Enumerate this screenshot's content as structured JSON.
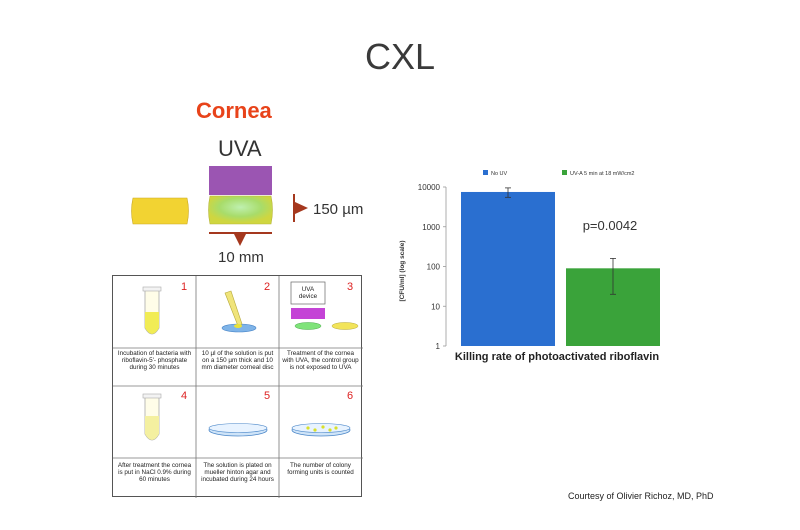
{
  "slide": {
    "title": "CXL",
    "credit": "Courtesy of Olivier Richoz, MD, PhD"
  },
  "cornea_diagram": {
    "title": "Cornea",
    "uva_label": "UVA",
    "thickness_label": "150 µm",
    "diameter_label": "10 mm",
    "colors": {
      "title": "#e8431a",
      "uva_bar": "#9b55b2",
      "disc": "#f2d332",
      "marker": "#a5381e"
    }
  },
  "steps": [
    {
      "number": "1",
      "caption": "Incubation of bacteria with riboflavin-5'- phosphate during 30 minutes"
    },
    {
      "number": "2",
      "caption": "10 µl of the solution is put on a 150 µm thick and 10 mm diameter corneal disc"
    },
    {
      "number": "3",
      "caption": "Treatment of the cornea with UVA, the control group is not exposed to UVA",
      "device_label": "UVA device"
    },
    {
      "number": "4",
      "caption": "After treatment the cornea is put in NaCl 0.9% during 60 minutes"
    },
    {
      "number": "5",
      "caption": "The solution is plated on mueller hinton agar and incubated during 24 hours"
    },
    {
      "number": "6",
      "caption": "The number of colony forming units is counted"
    }
  ],
  "chart_data": {
    "type": "bar",
    "categories": [
      "No UV",
      "UV-A 5 min at 18 mW/cm2"
    ],
    "series": [
      {
        "name": "No UV",
        "value": 7500,
        "error_low": 5500,
        "error_high": 9500,
        "color": "#2a6fd0"
      },
      {
        "name": "UV-A 5 min at 18 mW/cm2",
        "value": 90,
        "error_low": 20,
        "error_high": 160,
        "color": "#3aa33a"
      }
    ],
    "ylabel": "[CFU/ml] (log scale)",
    "xlabel": "Killing rate of photoactivated riboflavin",
    "yscale": "log",
    "ylim": [
      1,
      10000
    ],
    "yticks": [
      "1",
      "10",
      "100",
      "1000",
      "10000"
    ],
    "annotation": "p=0.0042",
    "legend_position": "top",
    "grid": false
  }
}
